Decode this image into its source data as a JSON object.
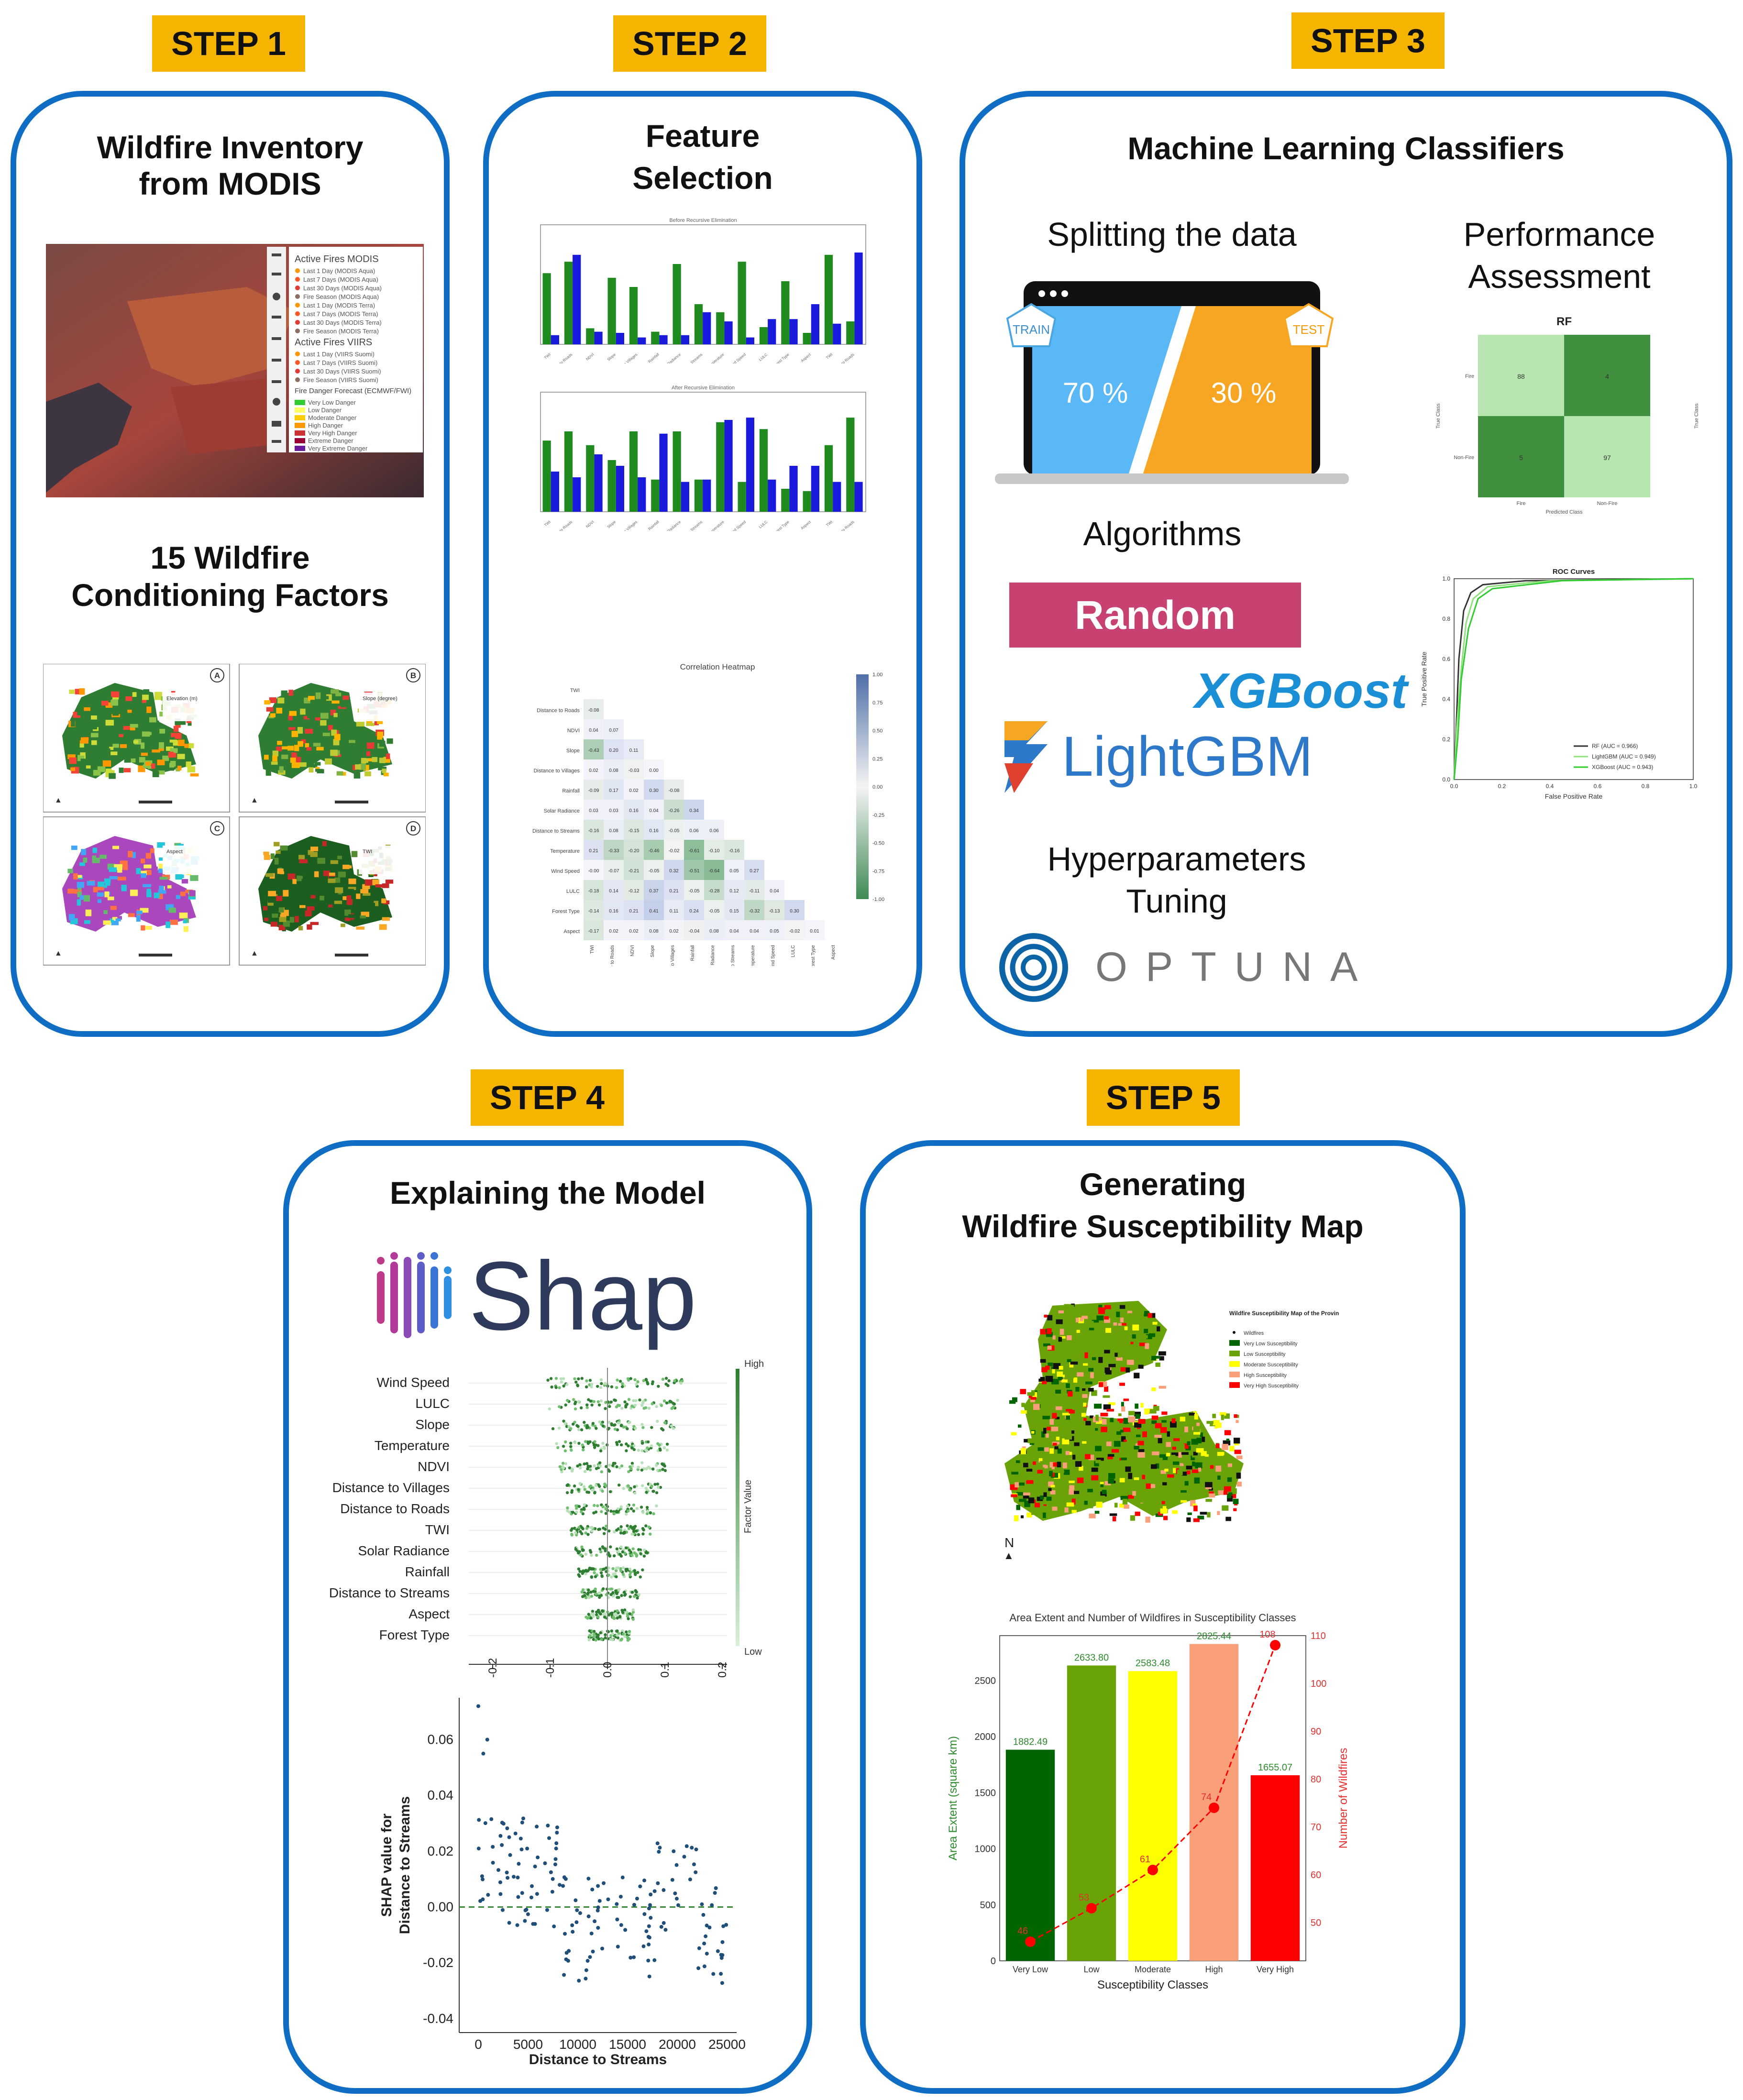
{
  "steps": {
    "s1": "STEP 1",
    "s2": "STEP 2",
    "s3": "STEP 3",
    "s4": "STEP 4",
    "s5": "STEP 5"
  },
  "panel1": {
    "title_line1": "Wildfire Inventory",
    "title_line2": "from MODIS",
    "factors_line1": "15 Wildfire",
    "factors_line2": "Conditioning  Factors",
    "legend_modis_title": "Active Fires MODIS",
    "legend_viirs_title": "Active Fires VIIRS",
    "legend_fwi_title": "Fire Danger Forecast (ECMWF/FWI)",
    "modis_items": [
      "Last 1 Day (MODIS Aqua)",
      "Last 7 Days (MODIS Aqua)",
      "Last 30 Days (MODIS Aqua)",
      "Fire Season (MODIS Aqua)",
      "Last 1 Day (MODIS Terra)",
      "Last 7 Days (MODIS Terra)",
      "Last 30 Days (MODIS Terra)",
      "Fire Season (MODIS Terra)"
    ],
    "viirs_items": [
      "Last 1 Day (VIIRS Suomi)",
      "Last 7 Days (VIIRS Suomi)",
      "Last 30 Days (VIIRS Suomi)",
      "Fire Season (VIIRS Suomi)"
    ],
    "fwi_items": [
      "Very Low Danger",
      "Low Danger",
      "Moderate Danger",
      "High Danger",
      "Very High Danger",
      "Extreme Danger",
      "Very Extreme Danger"
    ],
    "map_labels": [
      "A",
      "B",
      "C",
      "D"
    ],
    "map_titles": [
      "Elevation (m)",
      "Slope (degree)",
      "Aspect",
      "TWI"
    ]
  },
  "panel2": {
    "title_line1": "Feature",
    "title_line2": "Selection",
    "chart1_title": "Before Recursive Elimination",
    "chart2_title": "After Recursive Elimination",
    "heatmap_title": "Correlation Heatmap",
    "heatmap_labels": [
      "TWI",
      "Distance to Roads",
      "NDVI",
      "Slope",
      "Distance to Villages",
      "Rainfall",
      "Solar Radiance",
      "Distance to Streams",
      "Temperature",
      "Wind Speed",
      "LULC",
      "Forest Type",
      "Aspect"
    ],
    "heatmap_values": [
      [],
      [
        "-0.08"
      ],
      [
        "0.04",
        "0.07"
      ],
      [
        "-0.43",
        "0.20",
        "0.11"
      ],
      [
        "0.02",
        "0.08",
        "-0.03",
        "0.00"
      ],
      [
        "-0.09",
        "0.17",
        "0.02",
        "0.30",
        "-0.08"
      ],
      [
        "0.03",
        "0.03",
        "0.16",
        "0.04",
        "-0.26",
        "0.34"
      ],
      [
        "-0.16",
        "0.08",
        "-0.15",
        "0.16",
        "-0.05",
        "0.06",
        "0.06"
      ],
      [
        "0.21",
        "-0.33",
        "-0.20",
        "-0.46",
        "-0.02",
        "-0.61",
        "-0.10",
        "-0.16"
      ],
      [
        "-0.00",
        "-0.07",
        "-0.21",
        "-0.05",
        "0.32",
        "-0.51",
        "-0.64",
        "0.05",
        "0.27"
      ],
      [
        "-0.18",
        "0.14",
        "-0.12",
        "0.37",
        "0.21",
        "-0.05",
        "-0.28",
        "0.12",
        "-0.11",
        "0.04"
      ],
      [
        "-0.14",
        "0.16",
        "0.21",
        "0.41",
        "0.11",
        "0.24",
        "-0.05",
        "0.15",
        "-0.32",
        "-0.13",
        "0.30"
      ],
      [
        "-0.17",
        "0.02",
        "0.02",
        "0.08",
        "0.02",
        "-0.04",
        "0.08",
        "0.04",
        "0.04",
        "0.05",
        "-0.02",
        "0.01"
      ]
    ],
    "colorbar_ticks": [
      "1.00",
      "0.75",
      "0.50",
      "0.25",
      "0.00",
      "-0.25",
      "-0.50",
      "-0.75",
      "-1.00"
    ]
  },
  "panel3": {
    "title": "Machine Learning Classifiers",
    "split_title": "Splitting the data",
    "train_label": "TRAIN",
    "test_label": "TEST",
    "train_pct": "70 %",
    "test_pct": "30 %",
    "perf_line1": "Performance",
    "perf_line2": "Assessment",
    "algorithms": "Algorithms",
    "rf_logo": "Random Forest",
    "xgb_logo": "XGBoost",
    "lgbm_logo": "LightGBM",
    "hyper_line1": "Hyperparameters",
    "hyper_line2": "Tuning",
    "optuna_logo": "OPTUNA",
    "cm_title": "RF",
    "cm_row_labels": [
      "Fire",
      "Non-Fire"
    ],
    "cm_col_labels": [
      "Fire",
      "Non-Fire"
    ],
    "cm_values": [
      "88",
      "4",
      "5",
      "97"
    ],
    "cm_ylabel": "True Class",
    "cm_xlabel": "Predicted Class",
    "roc_title": "ROC Curves",
    "roc_xlabel": "False Positive Rate",
    "roc_ylabel": "True Positive Rate",
    "roc_legend": [
      "RF (AUC = 0.966)",
      "LightGBM (AUC = 0.949)",
      "XGBoost (AUC = 0.943)"
    ],
    "roc_ticks": [
      "0.0",
      "0.2",
      "0.4",
      "0.6",
      "0.8",
      "1.0"
    ]
  },
  "panel4": {
    "title": "Explaining the Model",
    "shap_logo": "Shap",
    "features": [
      "Wind Speed",
      "LULC",
      "Slope",
      "Temperature",
      "NDVI",
      "Distance to Villages",
      "Distance to Roads",
      "TWI",
      "Solar Radiance",
      "Rainfall",
      "Distance to Streams",
      "Aspect",
      "Forest Type"
    ],
    "beeswarm_ticks": [
      "-0.2",
      "-0.1",
      "0.0",
      "0.1",
      "0.2"
    ],
    "high": "High",
    "low": "Low",
    "factor_value": "Factor Value",
    "dep_ylabel_line1": "SHAP value for",
    "dep_ylabel_line2": "Distance to Streams",
    "dep_xlabel": "Distance to Streams",
    "dep_yticks": [
      "0.06",
      "0.04",
      "0.02",
      "0.00",
      "-0.02",
      "-0.04"
    ],
    "dep_xticks": [
      "0",
      "5000",
      "10000",
      "15000",
      "20000",
      "25000"
    ]
  },
  "panel5": {
    "title_line1": "Generating",
    "title_line2": "Wildfire Susceptibility Map",
    "map_legend_title": "Wildfire Susceptibility Map of the Province of Izmir",
    "map_legend_items": [
      "Wildfires",
      "Very Low Susceptibility",
      "Low Susceptibility",
      "Moderate Susceptibility",
      "High Susceptibility",
      "Very High Susceptibility"
    ],
    "north": "N"
  },
  "chart_data": {
    "type": "bar",
    "title": "Area Extent and Number of Wildfires in Susceptibility Classes",
    "categories": [
      "Very Low",
      "Low",
      "Moderate",
      "High",
      "Very High"
    ],
    "series": [
      {
        "name": "Area Extent (square km)",
        "values": [
          1882.49,
          2633.8,
          2583.48,
          2825.44,
          1655.07
        ],
        "value_labels": [
          "1882.49",
          "2633.80",
          "2583.48",
          "2825.44",
          "1655.07"
        ],
        "colors": [
          "#006400",
          "#6aa308",
          "#ffff00",
          "#f9a07a",
          "#ff0000"
        ]
      },
      {
        "name": "Number of Wildfires",
        "type": "line",
        "values": [
          46,
          53,
          61,
          74,
          108
        ],
        "value_labels": [
          "46",
          "53",
          "61",
          "74",
          "108"
        ],
        "color": "#ff0000"
      }
    ],
    "xlabel": "Susceptibility Classes",
    "ylabel": "Area Extent (square km)",
    "y2label": "Number of Wildfires",
    "ylim": [
      0,
      2900
    ],
    "y2lim": [
      42,
      110
    ],
    "yticks": [
      "0",
      "500",
      "1000",
      "1500",
      "2000",
      "2500"
    ],
    "y2ticks": [
      "50",
      "60",
      "70",
      "80",
      "90",
      "100",
      "110"
    ]
  }
}
